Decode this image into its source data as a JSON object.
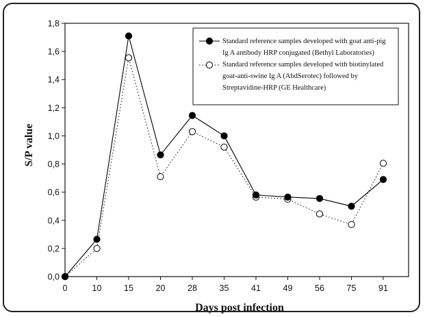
{
  "chart_data": {
    "type": "line",
    "xlabel": "Days post infection",
    "ylabel": "S/P value",
    "categories": [
      "0",
      "10",
      "15",
      "20",
      "28",
      "35",
      "41",
      "49",
      "56",
      "75",
      "91"
    ],
    "yticks": [
      "0,0",
      "0,2",
      "0,4",
      "0,6",
      "0,8",
      "1,0",
      "1,2",
      "1,4",
      "1,6",
      "1,8"
    ],
    "ylim": [
      0,
      1.8
    ],
    "grid": false,
    "legend_position": "top-right",
    "series": [
      {
        "name": "Standard reference samples developed with goat anti-pig Ig A antibody HRP conjugated (Bethyl Laboratories)",
        "legend_lines": [
          "Standard reference samples developed with goat anti-pig",
          "Ig A antibody HRP conjugated (Bethyl Laboratories)"
        ],
        "style": "solid line, filled circle",
        "color": "#000000",
        "values": [
          0.0,
          0.265,
          1.71,
          0.865,
          1.145,
          1.0,
          0.58,
          0.565,
          0.555,
          0.5,
          0.69
        ]
      },
      {
        "name": "Standard reference samples developed with biotinylated goat-anti-swine Ig A (AbdSerotec) followed by Streptavidine-HRP (GE Healthcare)",
        "legend_lines": [
          "Standard reference samples developed with biotinylated",
          "goat-anti-swine Ig A (AbdSerotec) followed by",
          "Streptavidine-HRP (GE Healthcare)"
        ],
        "style": "dotted line, open circle",
        "color": "#000000",
        "values": [
          0.0,
          0.2,
          1.555,
          0.71,
          1.03,
          0.92,
          0.565,
          0.55,
          0.445,
          0.37,
          0.805
        ]
      }
    ]
  }
}
